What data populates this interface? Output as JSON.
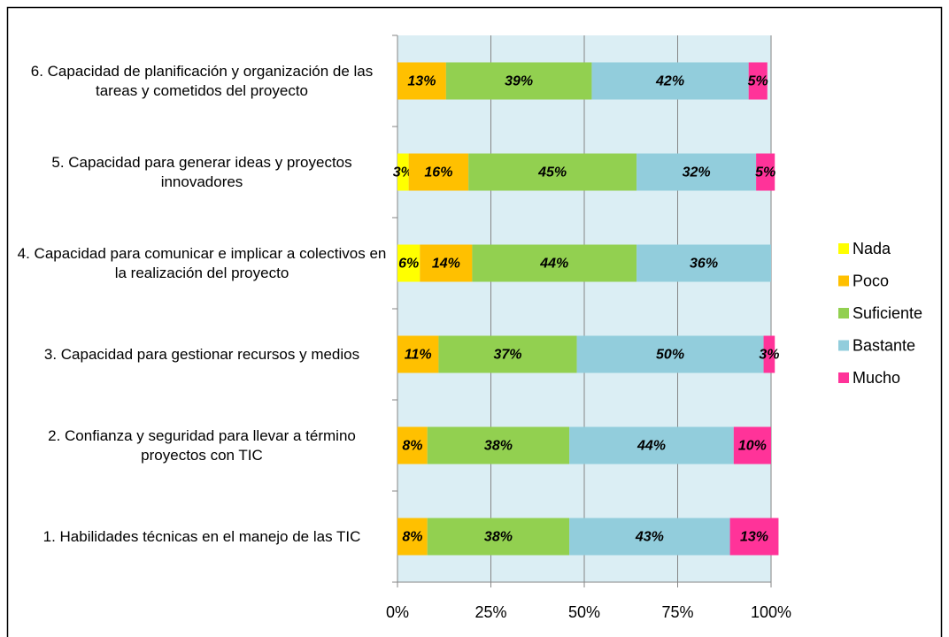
{
  "chart_data": {
    "type": "stacked_barh",
    "categories": [
      "6. Capacidad de planificación y organización de las tareas y cometidos del proyecto",
      "5. Capacidad para generar ideas y proyectos innovadores",
      "4. Capacidad para comunicar e implicar a colectivos en la realización del proyecto",
      "3. Capacidad para gestionar recursos y medios",
      "2. Confianza y seguridad para llevar a término proyectos con TIC",
      "1. Habilidades técnicas en el manejo de las TIC"
    ],
    "series": [
      {
        "name": "Nada",
        "color": "#ffff00",
        "values": [
          null,
          3,
          6,
          null,
          null,
          null
        ],
        "value_labels": [
          null,
          "3%",
          "6%",
          null,
          null,
          null
        ]
      },
      {
        "name": "Poco",
        "color": "#ffc000",
        "values": [
          13,
          16,
          14,
          11,
          8,
          8
        ],
        "value_labels": [
          "13%",
          "16%",
          "14%",
          "11%",
          "8%",
          "8%"
        ]
      },
      {
        "name": "Suficiente",
        "color": "#92d050",
        "values": [
          39,
          45,
          44,
          37,
          38,
          38
        ],
        "value_labels": [
          "39%",
          "45%",
          "44%",
          "37%",
          "38%",
          "38%"
        ]
      },
      {
        "name": "Bastante",
        "color": "#92cddc",
        "values": [
          42,
          32,
          36,
          50,
          44,
          43
        ],
        "value_labels": [
          "42%",
          "32%",
          "36%",
          "50%",
          "44%",
          "43%"
        ]
      },
      {
        "name": "Mucho",
        "color": "#ff3399",
        "values": [
          5,
          5,
          null,
          3,
          10,
          13
        ],
        "value_labels": [
          "5%",
          "5%",
          null,
          "3%",
          "10%",
          "13%"
        ]
      }
    ],
    "xlim": [
      0,
      100
    ],
    "xticks": [
      {
        "value": 0,
        "label": "0%"
      },
      {
        "value": 25,
        "label": "25%"
      },
      {
        "value": 50,
        "label": "50%"
      },
      {
        "value": 75,
        "label": "75%"
      },
      {
        "value": 100,
        "label": "100%"
      }
    ],
    "grid": true,
    "legend": "right"
  }
}
